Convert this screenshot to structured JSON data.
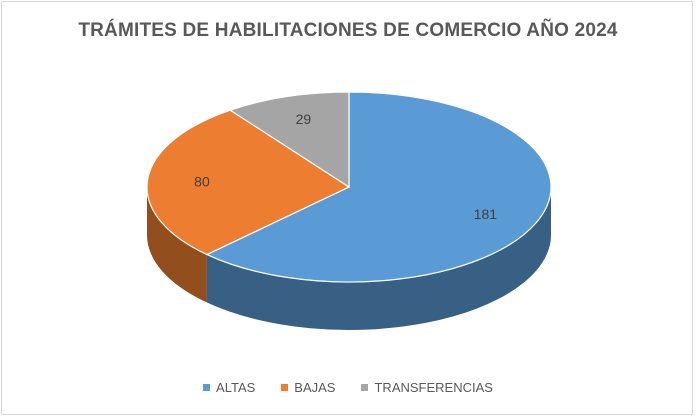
{
  "chart_data": {
    "type": "pie",
    "title": "TRÁMITES DE HABILITACIONES DE COMERCIO AÑO 2024",
    "categories": [
      "ALTAS",
      "BAJAS",
      "TRANSFERENCIAS"
    ],
    "values": [
      181,
      80,
      29
    ],
    "colors": [
      "#5b9bd5",
      "#ed7d31",
      "#a5a5a5"
    ],
    "data_labels": [
      "181",
      "80",
      "29"
    ],
    "style": "3d",
    "legend_position": "bottom"
  }
}
